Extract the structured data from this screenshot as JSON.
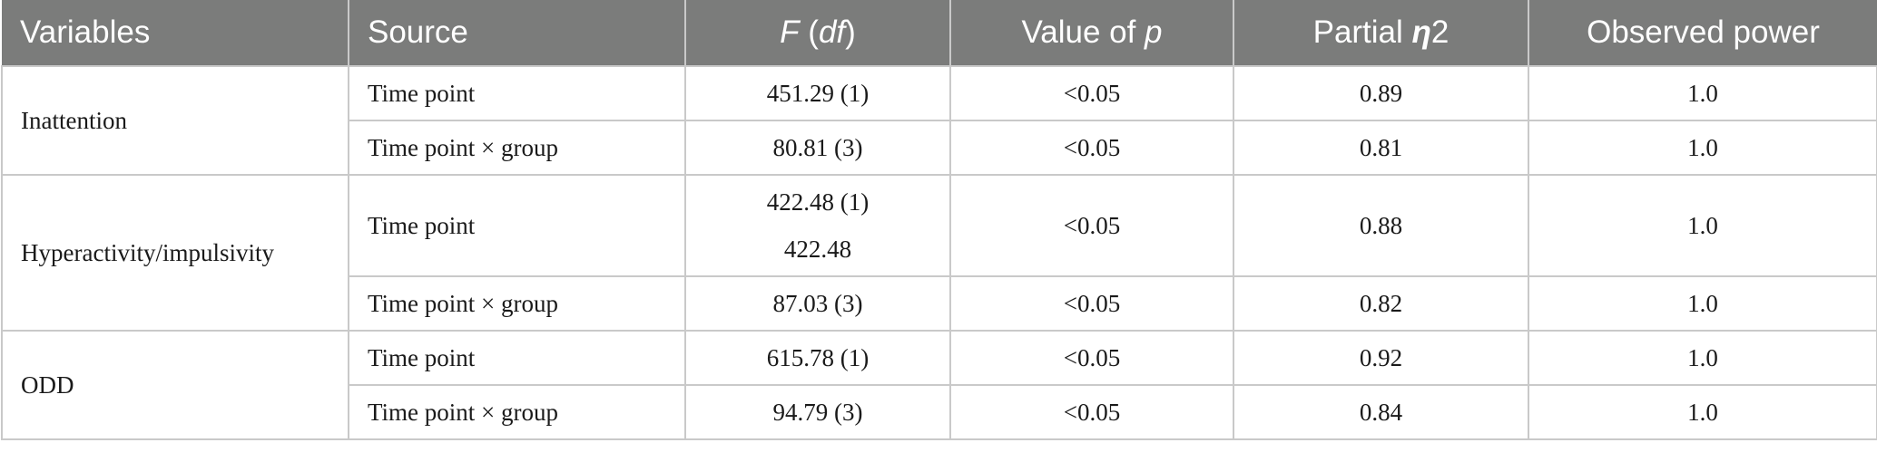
{
  "table": {
    "headers": {
      "variables": "Variables",
      "source": "Source",
      "f_df_prefix": "F",
      "f_df_open": " (",
      "f_df_df": "df",
      "f_df_close": ")",
      "p_prefix": "Value of ",
      "p_var": "p",
      "eta_prefix": "Partial ",
      "eta_symbol": "η",
      "eta_suffix": "2",
      "power": "Observed power"
    },
    "groups": [
      {
        "variable": "Inattention",
        "rows": [
          {
            "source": "Time point",
            "f_df": "451.29 (1)",
            "p": "<0.05",
            "eta": "0.89",
            "power": "1.0"
          },
          {
            "source": "Time point × group",
            "f_df": "80.81 (3)",
            "p": "<0.05",
            "eta": "0.81",
            "power": "1.0"
          }
        ]
      },
      {
        "variable": "Hyperactivity/impulsivity",
        "rows": [
          {
            "source": "Time point",
            "f_df": "422.48 (1)",
            "f_df_extra": "422.48",
            "p": "<0.05",
            "eta": "0.88",
            "power": "1.0"
          },
          {
            "source": "Time point × group",
            "f_df": "87.03 (3)",
            "p": "<0.05",
            "eta": "0.82",
            "power": "1.0"
          }
        ]
      },
      {
        "variable": "ODD",
        "rows": [
          {
            "source": "Time point",
            "f_df": "615.78 (1)",
            "p": "<0.05",
            "eta": "0.92",
            "power": "1.0"
          },
          {
            "source": "Time point × group",
            "f_df": "94.79 (3)",
            "p": "<0.05",
            "eta": "0.84",
            "power": "1.0"
          }
        ]
      }
    ]
  }
}
